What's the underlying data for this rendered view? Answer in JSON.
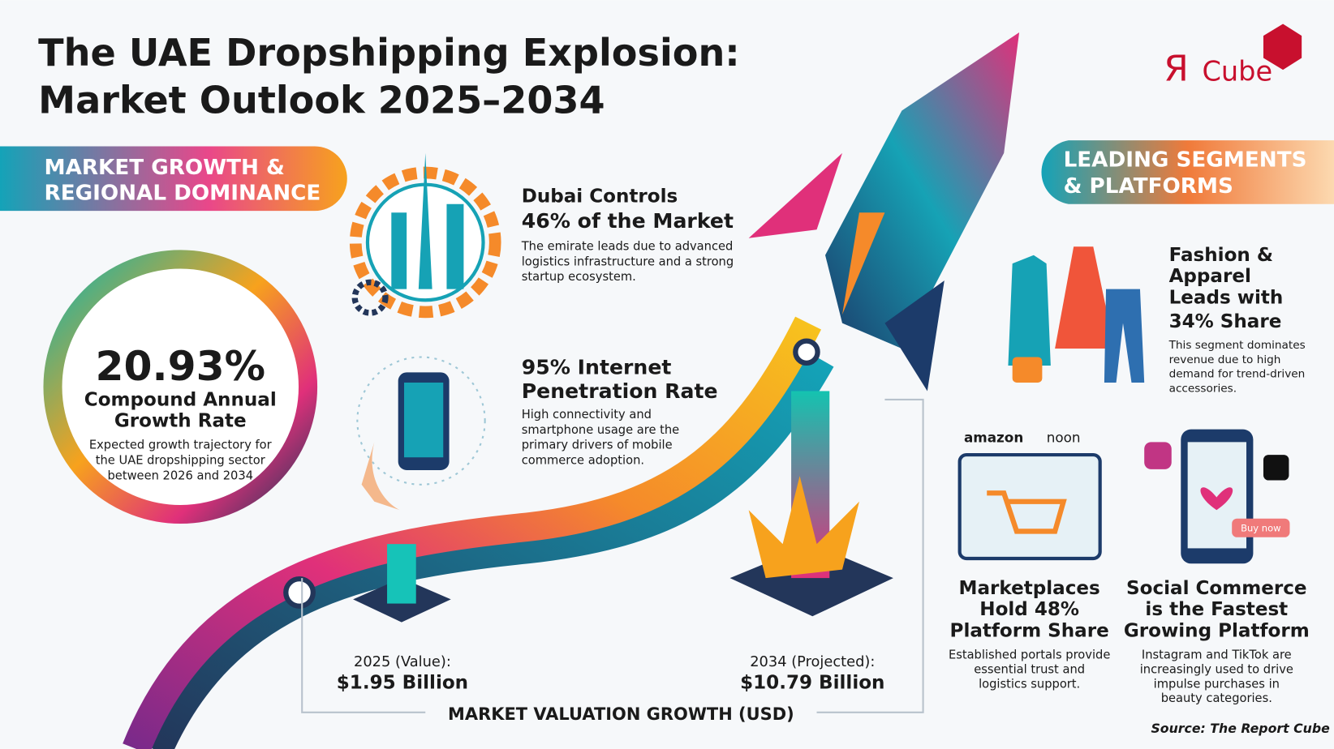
{
  "header": {
    "title": [
      "The UAE Dropshipping Explosion:",
      "Market Outlook 2025–2034"
    ],
    "logo": {
      "mark": "Я",
      "name": "Cube"
    }
  },
  "left_section": {
    "heading": [
      "MARKET GROWTH &",
      "REGIONAL DOMINANCE"
    ]
  },
  "cagr": {
    "value": "20.93%",
    "label": [
      "Compound Annual",
      "Growth Rate"
    ],
    "description": [
      "Expected growth trajectory for",
      "the UAE dropshipping sector",
      "between 2026 and 2034"
    ]
  },
  "stats": [
    {
      "title": [
        "Dubai Controls",
        "46% of the Market"
      ],
      "text": [
        "The emirate leads due to advanced",
        "logistics infrastructure and a strong",
        "startup ecosystem."
      ]
    },
    {
      "title": [
        "95% Internet",
        "Penetration Rate"
      ],
      "text": [
        "High connectivity and",
        "smartphone usage are the",
        "primary drivers of mobile",
        "commerce adoption."
      ]
    }
  ],
  "valuation": {
    "start": {
      "label": "2025 (Value):",
      "value": "$1.95 Billion"
    },
    "end": {
      "label": "2034 (Projected):",
      "value": "$10.79 Billion"
    },
    "caption": "MARKET VALUATION GROWTH (USD)"
  },
  "right_section": {
    "heading": [
      "LEADING SEGMENTS",
      "& PLATFORMS"
    ],
    "fashion": {
      "title": [
        "Fashion &",
        "Apparel",
        "Leads with",
        "34% Share"
      ],
      "text": [
        "This segment dominates",
        "revenue due to high",
        "demand for trend-driven",
        "accessories."
      ]
    },
    "marketplaces": {
      "logos": [
        "amazon",
        "noon"
      ],
      "title": [
        "Marketplaces",
        "Hold 48%",
        "Platform Share"
      ],
      "text": [
        "Established portals provide",
        "essential trust and",
        "logistics support."
      ]
    },
    "social": {
      "button": "Buy now",
      "title": [
        "Social Commerce",
        "is the Fastest",
        "Growing Platform"
      ],
      "text": [
        "Instagram and TikTok are",
        "increasingly used to drive",
        "impulse purchases in",
        "beauty categories."
      ]
    }
  },
  "source": "Source: The Report Cube"
}
